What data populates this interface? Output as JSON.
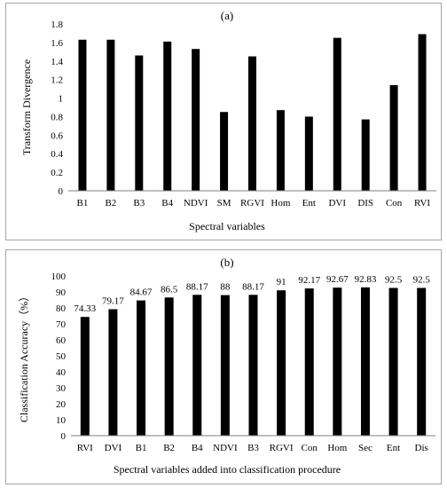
{
  "chart_data": [
    {
      "type": "bar",
      "title": "(a)",
      "xlabel": "Spectral variables",
      "ylabel": "Transform Divergence",
      "categories": [
        "B1",
        "B2",
        "B3",
        "B4",
        "NDVI",
        "SM",
        "RGVI",
        "Hom",
        "Ent",
        "DVI",
        "DIS",
        "Con",
        "RVI"
      ],
      "values": [
        1.63,
        1.63,
        1.46,
        1.61,
        1.53,
        0.85,
        1.45,
        0.87,
        0.8,
        1.65,
        0.77,
        1.14,
        1.69
      ],
      "ylim": [
        0,
        1.8
      ],
      "yticks": [
        "0",
        "0.2",
        "0.4",
        "0.6",
        "0.8",
        "1",
        "1.2",
        "1.4",
        "1.6",
        "1.8"
      ],
      "grid": false,
      "data_labels": false,
      "bar_color": "#000000"
    },
    {
      "type": "bar",
      "title": "(b)",
      "xlabel": "Spectral variables added into classification procedure",
      "ylabel": "Classification Accuracy（%）",
      "categories": [
        "RVI",
        "DVI",
        "B1",
        "B2",
        "B4",
        "NDVI",
        "B3",
        "RGVI",
        "Con",
        "Hom",
        "Sec",
        "Ent",
        "Dis"
      ],
      "values": [
        74.33,
        79.17,
        84.67,
        86.5,
        88.17,
        88,
        88.17,
        91,
        92.17,
        92.67,
        92.83,
        92.5,
        92.5
      ],
      "value_labels": [
        "74.33",
        "79.17",
        "84.67",
        "86.5",
        "88.17",
        "88",
        "88.17",
        "91",
        "92.17",
        "92.67",
        "92.83",
        "92.5",
        "92.5"
      ],
      "ylim": [
        0,
        100
      ],
      "yticks": [
        "0",
        "10",
        "20",
        "30",
        "40",
        "50",
        "60",
        "70",
        "80",
        "90",
        "100"
      ],
      "grid": false,
      "data_labels": true,
      "bar_color": "#000000"
    }
  ]
}
